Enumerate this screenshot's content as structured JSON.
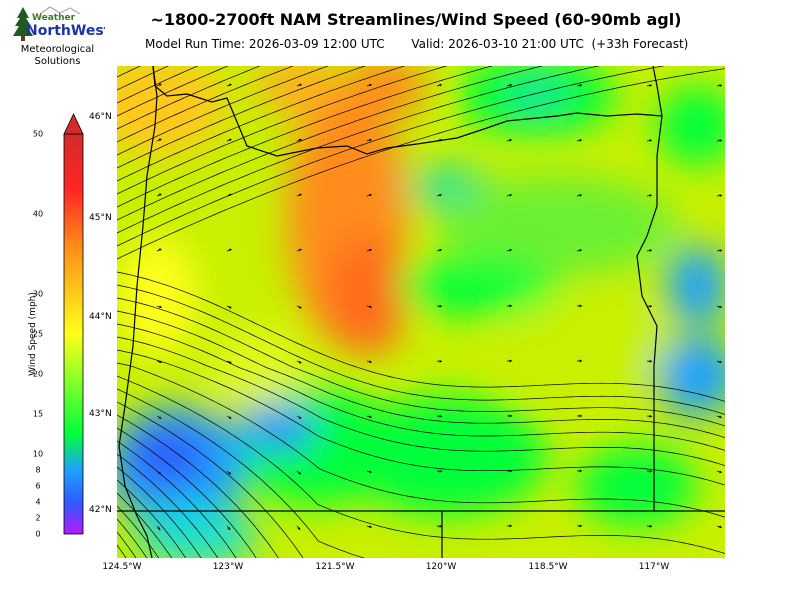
{
  "logo": {
    "brand_small": "Weather",
    "brand_large": "NorthWest",
    "line1": "Meteorological",
    "line2": "Solutions"
  },
  "title": "~1800-2700ft NAM Streamlines/Wind Speed (60-90mb agl)",
  "subtitle": "Model Run Time: 2026-03-09 12:00 UTC       Valid: 2026-03-10 21:00 UTC  (+33h Forecast)",
  "colorbar": {
    "label": "Wind Speed (mph)",
    "ticks": [
      "0",
      "2",
      "4",
      "6",
      "8",
      "10",
      "15",
      "20",
      "25",
      "30",
      "40",
      "50"
    ],
    "colors": [
      "#b31aff",
      "#2f5cff",
      "#1ea0ff",
      "#00ff3a",
      "#ffff1a",
      "#ff8c1a",
      "#e82626"
    ],
    "extend": "max"
  },
  "axes": {
    "lon_labels": [
      "124.5°W",
      "123°W",
      "121.5°W",
      "120°W",
      "118.5°W",
      "117°W"
    ],
    "lat_labels": [
      "46°N",
      "45°N",
      "44°N",
      "43°N",
      "42°N"
    ]
  }
}
